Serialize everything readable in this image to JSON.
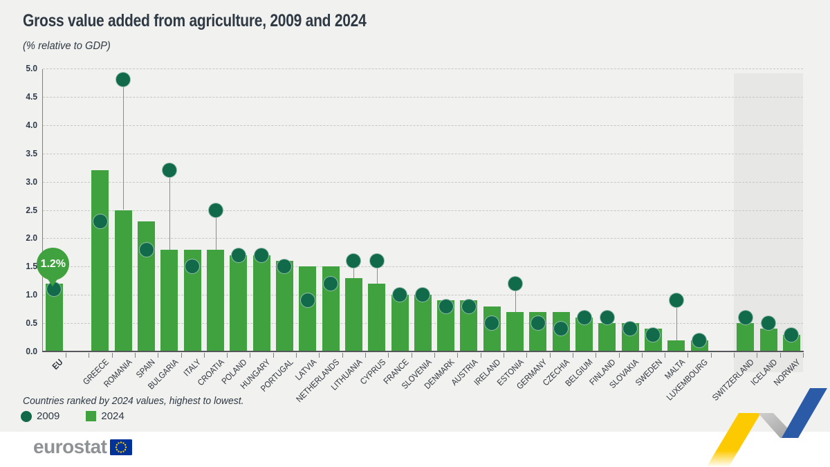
{
  "footer": {
    "brand": "eurostat"
  },
  "chart_data": {
    "type": "bar",
    "title": "Gross value added from agriculture, 2009 and 2024",
    "subtitle": "(% relative to GDP)",
    "note": "Countries ranked by 2024 values, highest to lowest.",
    "ylim": [
      0,
      5
    ],
    "ytick_step": 0.5,
    "grid": "dashed-horizontal",
    "legend_position": "bottom-left",
    "legend": [
      {
        "label": "2009",
        "marker": "circle",
        "color": "#116a4a"
      },
      {
        "label": "2024",
        "marker": "square",
        "color": "#3fa23e"
      }
    ],
    "colors": {
      "bar_2024": "#3fa23e",
      "dot_2009": "#116a4a",
      "highlight_region": "#e7e7e5",
      "background": "#f1f1ef",
      "ribbon_yellow": "#fdc900",
      "ribbon_blue": "#2b5aa7",
      "flag_blue": "#003399",
      "star_yellow": "#ffcc00"
    },
    "callout": {
      "country": "EU",
      "text": "1.2%"
    },
    "series": [
      {
        "name": "2009",
        "type": "dot"
      },
      {
        "name": "2024",
        "type": "bar"
      }
    ],
    "countries": [
      {
        "name": "EU",
        "v2024": 1.2,
        "v2009": 1.1,
        "bold": true,
        "callout": "1.2%"
      },
      {
        "name": "GREECE",
        "v2024": 3.2,
        "v2009": 2.3,
        "gap_before": true
      },
      {
        "name": "ROMANIA",
        "v2024": 2.5,
        "v2009": 4.8
      },
      {
        "name": "SPAIN",
        "v2024": 2.3,
        "v2009": 1.8
      },
      {
        "name": "BULGARIA",
        "v2024": 1.8,
        "v2009": 3.2
      },
      {
        "name": "ITALY",
        "v2024": 1.8,
        "v2009": 1.5
      },
      {
        "name": "CROATIA",
        "v2024": 1.8,
        "v2009": 2.5
      },
      {
        "name": "POLAND",
        "v2024": 1.7,
        "v2009": 1.7
      },
      {
        "name": "HUNGARY",
        "v2024": 1.7,
        "v2009": 1.7
      },
      {
        "name": "PORTUGAL",
        "v2024": 1.6,
        "v2009": 1.5
      },
      {
        "name": "LATVIA",
        "v2024": 1.5,
        "v2009": 0.9
      },
      {
        "name": "NETHERLANDS",
        "v2024": 1.5,
        "v2009": 1.2
      },
      {
        "name": "LITHUANIA",
        "v2024": 1.3,
        "v2009": 1.6
      },
      {
        "name": "CYPRUS",
        "v2024": 1.2,
        "v2009": 1.6
      },
      {
        "name": "FRANCE",
        "v2024": 1.0,
        "v2009": 1.0
      },
      {
        "name": "SLOVENIA",
        "v2024": 1.0,
        "v2009": 1.0
      },
      {
        "name": "DENMARK",
        "v2024": 0.9,
        "v2009": 0.8
      },
      {
        "name": "AUSTRIA",
        "v2024": 0.9,
        "v2009": 0.8
      },
      {
        "name": "IRELAND",
        "v2024": 0.8,
        "v2009": 0.5
      },
      {
        "name": "ESTONIA",
        "v2024": 0.7,
        "v2009": 1.2
      },
      {
        "name": "GERMANY",
        "v2024": 0.7,
        "v2009": 0.5
      },
      {
        "name": "CZECHIA",
        "v2024": 0.7,
        "v2009": 0.4
      },
      {
        "name": "BELGIUM",
        "v2024": 0.6,
        "v2009": 0.6
      },
      {
        "name": "FINLAND",
        "v2024": 0.5,
        "v2009": 0.6
      },
      {
        "name": "SLOVAKIA",
        "v2024": 0.5,
        "v2009": 0.4
      },
      {
        "name": "SWEDEN",
        "v2024": 0.4,
        "v2009": 0.3
      },
      {
        "name": "MALTA",
        "v2024": 0.2,
        "v2009": 0.9
      },
      {
        "name": "LUXEMBOURG",
        "v2024": 0.2,
        "v2009": 0.2
      },
      {
        "name": "SWITZERLAND",
        "v2024": 0.5,
        "v2009": 0.6,
        "gap_before": true,
        "highlight": true
      },
      {
        "name": "ICELAND",
        "v2024": 0.4,
        "v2009": 0.5,
        "highlight": true
      },
      {
        "name": "NORWAY",
        "v2024": 0.3,
        "v2009": 0.3,
        "highlight": true
      }
    ]
  }
}
